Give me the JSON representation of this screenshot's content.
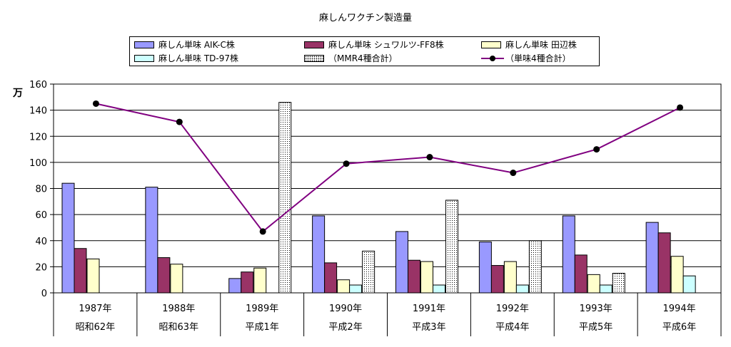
{
  "chart_data": {
    "type": "bar",
    "title": "麻しんワクチン製造量",
    "ylabel": "万",
    "ylim": [
      0,
      160
    ],
    "yticks": [
      0,
      20,
      40,
      60,
      80,
      100,
      120,
      140,
      160
    ],
    "grid": true,
    "legend_position": "top",
    "categories": [
      [
        "1987年",
        "昭和62年"
      ],
      [
        "1988年",
        "昭和63年"
      ],
      [
        "1989年",
        "平成1年"
      ],
      [
        "1990年",
        "平成2年"
      ],
      [
        "1991年",
        "平成3年"
      ],
      [
        "1992年",
        "平成4年"
      ],
      [
        "1993年",
        "平成5年"
      ],
      [
        "1994年",
        "平成6年"
      ]
    ],
    "series": [
      {
        "name": "麻しん単味 AIK-C株",
        "type": "bar",
        "color": "#9999FF",
        "pattern": "solid",
        "values": [
          84,
          81,
          11,
          59,
          47,
          39,
          59,
          54
        ]
      },
      {
        "name": "麻しん単味 シュワルツ-FF8株",
        "type": "bar",
        "color": "#993366",
        "pattern": "solid",
        "values": [
          34,
          27,
          16,
          23,
          25,
          21,
          29,
          46
        ]
      },
      {
        "name": "麻しん単味 田辺株",
        "type": "bar",
        "color": "#FFFFCC",
        "pattern": "solid",
        "values": [
          26,
          22,
          19,
          10,
          24,
          24,
          14,
          28
        ]
      },
      {
        "name": "麻しん単味 TD-97株",
        "type": "bar",
        "color": "#CCFFFF",
        "pattern": "solid",
        "values": [
          0,
          0,
          0,
          6,
          6,
          6,
          6,
          13
        ]
      },
      {
        "name": "（MMR4種合計）",
        "type": "bar",
        "color": "#FFFFFF",
        "pattern": "dotted",
        "values": [
          0,
          0,
          146,
          32,
          71,
          40,
          15,
          0
        ]
      },
      {
        "name": "（単味4種合計）",
        "type": "line",
        "color": "#800080",
        "values": [
          145,
          131,
          47,
          99,
          104,
          92,
          110,
          142
        ]
      }
    ]
  }
}
